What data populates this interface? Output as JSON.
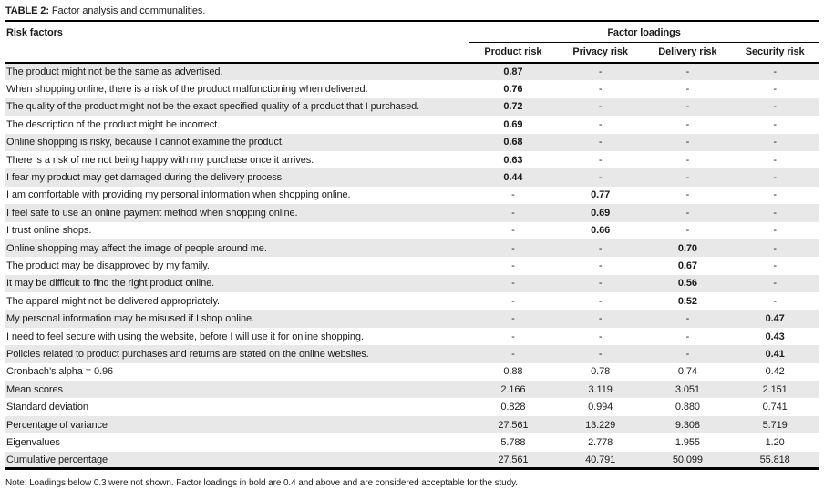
{
  "title": {
    "label": "TABLE 2:",
    "text": " Factor analysis and communalities."
  },
  "table": {
    "row_header": "Risk factors",
    "spanner": "Factor loadings",
    "columns": [
      "Product risk",
      "Privacy risk",
      "Delivery risk",
      "Security risk"
    ],
    "rows": [
      {
        "label": "The product might not be the same as advertised.",
        "values": [
          "0.87",
          "-",
          "-",
          "-"
        ],
        "bold_values": true
      },
      {
        "label": "When shopping online, there is a risk of the product malfunctioning when delivered.",
        "values": [
          "0.76",
          "-",
          "-",
          "-"
        ],
        "bold_values": true
      },
      {
        "label": "The quality of the product might not be the exact specified quality of a product that I purchased.",
        "values": [
          "0.72",
          "-",
          "-",
          "-"
        ],
        "bold_values": true
      },
      {
        "label": "The description of the product might be incorrect.",
        "values": [
          "0.69",
          "-",
          "-",
          "-"
        ],
        "bold_values": true
      },
      {
        "label": "Online shopping is risky, because I cannot examine the product.",
        "values": [
          "0.68",
          "-",
          "-",
          "-"
        ],
        "bold_values": true
      },
      {
        "label": "There is a risk of me not being happy with my purchase once it arrives.",
        "values": [
          "0.63",
          "-",
          "-",
          "-"
        ],
        "bold_values": true
      },
      {
        "label": "I fear my product may get damaged during the delivery process.",
        "values": [
          "0.44",
          "-",
          "-",
          "-"
        ],
        "bold_values": true
      },
      {
        "label": "I am comfortable with providing my personal information when shopping online.",
        "values": [
          "-",
          "0.77",
          "-",
          "-"
        ],
        "bold_values": true
      },
      {
        "label": "I feel safe to use an online payment method when shopping online.",
        "values": [
          "-",
          "0.69",
          "-",
          "-"
        ],
        "bold_values": true
      },
      {
        "label": "I trust online shops.",
        "values": [
          "-",
          "0.66",
          "-",
          "-"
        ],
        "bold_values": true
      },
      {
        "label": "Online shopping may affect the image of people around me.",
        "values": [
          "-",
          "-",
          "0.70",
          "-"
        ],
        "bold_values": true
      },
      {
        "label": "The product may be disapproved by my family.",
        "values": [
          "-",
          "-",
          "0.67",
          "-"
        ],
        "bold_values": true
      },
      {
        "label": "It may be difficult to find the right product online.",
        "values": [
          "-",
          "-",
          "0.56",
          "-"
        ],
        "bold_values": true
      },
      {
        "label": "The apparel might not be delivered appropriately.",
        "values": [
          "-",
          "-",
          "0.52",
          "-"
        ],
        "bold_values": true
      },
      {
        "label": "My personal information may be misused if I shop online.",
        "values": [
          "-",
          "-",
          "-",
          "0.47"
        ],
        "bold_values": true
      },
      {
        "label": "I need to feel secure with using the website, before I will use it for online shopping.",
        "values": [
          "-",
          "-",
          "-",
          "0.43"
        ],
        "bold_values": true
      },
      {
        "label": "Policies related to product purchases and returns are stated on the online websites.",
        "values": [
          "-",
          "-",
          "-",
          "0.41"
        ],
        "bold_values": true
      },
      {
        "label": "Cronbach’s alpha = 0.96",
        "values": [
          "0.88",
          "0.78",
          "0.74",
          "0.42"
        ],
        "bold_values": false
      },
      {
        "label": "Mean scores",
        "values": [
          "2.166",
          "3.119",
          "3.051",
          "2.151"
        ],
        "bold_values": false
      },
      {
        "label": "Standard deviation",
        "values": [
          "0.828",
          "0.994",
          "0.880",
          "0.741"
        ],
        "bold_values": false
      },
      {
        "label": "Percentage of variance",
        "values": [
          "27.561",
          "13.229",
          "9.308",
          "5.719"
        ],
        "bold_values": false
      },
      {
        "label": "Eigenvalues",
        "values": [
          "5.788",
          "2.778",
          "1.955",
          "1.20"
        ],
        "bold_values": false
      },
      {
        "label": "Cumulative percentage",
        "values": [
          "27.561",
          "40.791",
          "50.099",
          "55.818"
        ],
        "bold_values": false
      }
    ]
  },
  "note": "Note: Loadings below 0.3 were not shown. Factor loadings in bold are 0.4 and above and are considered acceptable for the study.",
  "colors": {
    "row_shade": "#e8e8e8",
    "rule": "#000000",
    "text": "#1c1c1c"
  }
}
